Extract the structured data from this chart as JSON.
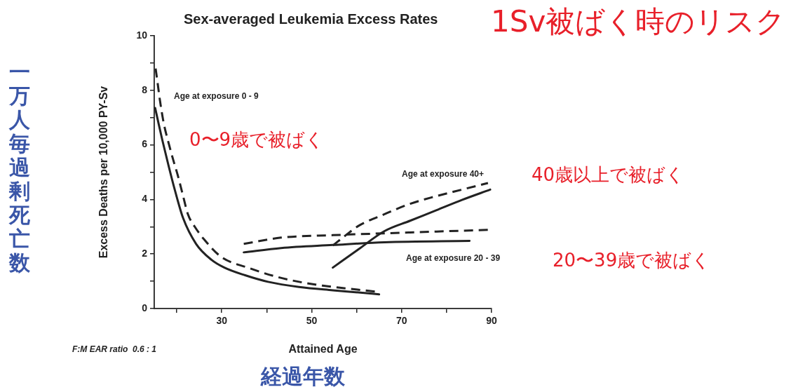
{
  "chart_data": {
    "type": "line",
    "title": "Sex-averaged Leukemia Excess Rates",
    "subtitle": "1Sv被ばく時のリスク",
    "xlabel": "Attained Age",
    "ylabel": "Excess Deaths per 10,000 PY-Sv",
    "annotations": [
      "Age at exposure 0 - 9",
      "Age at exposure 40+",
      "Age at exposure 20 - 39",
      "0〜9歳で被ばく",
      "40歳以上で被ばく",
      "20〜39歳で被ばく",
      "F:M EAR ratio  0.6 : 1",
      "一万人毎過剰死亡数",
      "経過年数"
    ],
    "series": [
      {
        "color": "#222222",
        "line_style": "solid",
        "x": [
          15.2,
          16.0,
          16.8,
          18.2,
          19.7,
          21.4,
          24.3,
          27.7,
          30.6,
          35.2,
          40.3,
          47.2,
          54.7,
          60.4,
          65.0
        ],
        "values": [
          7.35,
          6.75,
          6.17,
          5.22,
          4.27,
          3.32,
          2.37,
          1.79,
          1.5,
          1.22,
          0.98,
          0.79,
          0.67,
          0.59,
          0.52
        ]
      },
      {
        "color": "#222222",
        "line_style": "dashed",
        "x": [
          15.3,
          15.8,
          16.2,
          17.1,
          18.3,
          19.3,
          20.2,
          21.3,
          22.5,
          24.0,
          26.0,
          30.0,
          35.8,
          42.1,
          47.2,
          52.4,
          57.6,
          64.3
        ],
        "values": [
          8.8,
          8.2,
          7.7,
          6.8,
          6.0,
          5.4,
          4.9,
          4.2,
          3.45,
          3.0,
          2.55,
          1.88,
          1.5,
          1.17,
          0.98,
          0.84,
          0.74,
          0.62
        ]
      },
      {
        "color": "#222222",
        "line_style": "solid",
        "x": [
          34.9,
          43.2,
          54.7,
          66.2,
          85.1
        ],
        "values": [
          2.06,
          2.22,
          2.33,
          2.43,
          2.48
        ]
      },
      {
        "color": "#222222",
        "line_style": "dashed",
        "x": [
          34.9,
          43.2,
          54.7,
          71.9,
          90.0
        ],
        "values": [
          2.37,
          2.6,
          2.69,
          2.79,
          2.89
        ]
      },
      {
        "color": "#222222",
        "line_style": "solid",
        "x": [
          54.7,
          60.4,
          66.2,
          71.9,
          77.7,
          83.4,
          89.7
        ],
        "values": [
          1.5,
          2.17,
          2.84,
          3.22,
          3.6,
          3.98,
          4.36
        ]
      },
      {
        "color": "#222222",
        "line_style": "dashed",
        "x": [
          54.7,
          57.6,
          60.4,
          66.2,
          71.9,
          77.7,
          83.4,
          89.2
        ],
        "values": [
          2.31,
          2.69,
          3.03,
          3.46,
          3.84,
          4.12,
          4.36,
          4.6
        ]
      }
    ],
    "xlim": [
      15,
      90
    ],
    "ylim": [
      0,
      10
    ],
    "xticks": [
      {
        "value": 20,
        "label": null
      },
      30,
      {
        "value": 40,
        "label": null
      },
      50,
      {
        "value": 60,
        "label": null
      },
      70,
      {
        "value": 80,
        "label": null
      },
      90
    ],
    "yticks": [
      0,
      {
        "value": 1,
        "label": null
      },
      2,
      {
        "value": 3,
        "label": null
      },
      4,
      {
        "value": 5,
        "label": null
      },
      6,
      {
        "value": 7,
        "label": null
      },
      8,
      {
        "value": 9,
        "label": null
      },
      10
    ],
    "grid": false,
    "legend": false,
    "marker": "none"
  }
}
